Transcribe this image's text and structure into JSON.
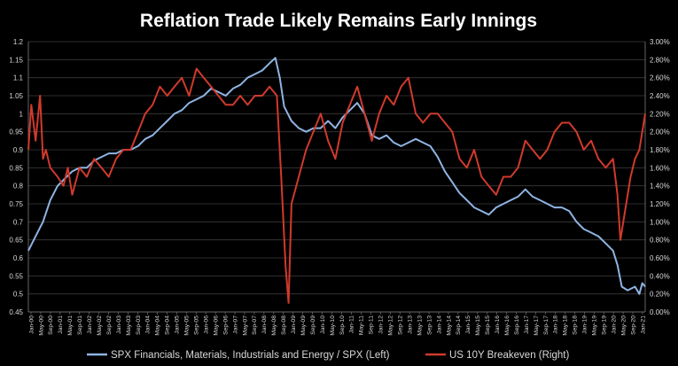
{
  "chart_data": {
    "type": "line",
    "title": "Reflation Trade Likely Remains Early Innings",
    "xlabel": "",
    "ylabel": "",
    "y_left": {
      "range": [
        0.45,
        1.2
      ],
      "ticks": [
        0.45,
        0.5,
        0.55,
        0.6,
        0.65,
        0.7,
        0.75,
        0.8,
        0.85,
        0.9,
        0.95,
        1,
        1.05,
        1.1,
        1.15,
        1.2
      ],
      "tick_labels": [
        "0.45",
        "0.5",
        "0.55",
        "0.6",
        "0.65",
        "0.7",
        "0.75",
        "0.8",
        "0.85",
        "0.9",
        "0.95",
        "1",
        "1.05",
        "1.1",
        "1.15",
        "1.2"
      ]
    },
    "y_right": {
      "range": [
        0.0,
        3.0
      ],
      "ticks": [
        0,
        0.2,
        0.4,
        0.6,
        0.8,
        1.0,
        1.2,
        1.4,
        1.6,
        1.8,
        2.0,
        2.2,
        2.4,
        2.6,
        2.8,
        3.0
      ],
      "tick_labels": [
        "0.00%",
        "0.20%",
        "0.40%",
        "0.60%",
        "0.80%",
        "1.00%",
        "1.20%",
        "1.40%",
        "1.60%",
        "1.80%",
        "2.00%",
        "2.20%",
        "2.40%",
        "2.60%",
        "2.80%",
        "3.00%"
      ]
    },
    "x_range": [
      2000.0,
      2021.1
    ],
    "x_tick_labels": [
      "Jan-00",
      "May-00",
      "Sep-00",
      "Jan-01",
      "May-01",
      "Sep-01",
      "Jan-02",
      "May-02",
      "Sep-02",
      "Jan-03",
      "May-03",
      "Sep-03",
      "Jan-04",
      "May-04",
      "Sep-04",
      "Jan-05",
      "May-05",
      "Sep-05",
      "Jan-06",
      "May-06",
      "Sep-06",
      "Jan-07",
      "May-07",
      "Sep-07",
      "Jan-08",
      "May-08",
      "Sep-08",
      "Jan-09",
      "May-09",
      "Sep-09",
      "Jan-10",
      "May-10",
      "Sep-10",
      "Jan-11",
      "May-11",
      "Sep-11",
      "Jan-12",
      "May-12",
      "Sep-12",
      "Jan-13",
      "May-13",
      "Sep-13",
      "Jan-14",
      "May-14",
      "Sep-14",
      "Jan-15",
      "May-15",
      "Sep-15",
      "Jan-16",
      "May-16",
      "Sep-16",
      "Jan-17",
      "May-17",
      "Sep-17",
      "Jan-18",
      "May-18",
      "Sep-18",
      "Jan-19",
      "May-19",
      "Sep-19",
      "Jan-20",
      "May-20",
      "Sep-20",
      "Jan-21"
    ],
    "grid": true,
    "legend_position": "bottom",
    "series": [
      {
        "name": "SPX Financials, Materials, Industrials and Energy / SPX (Left)",
        "axis": "left",
        "color": "#8fb4e3",
        "x": [
          2000.0,
          2000.25,
          2000.5,
          2000.75,
          2001.0,
          2001.25,
          2001.5,
          2001.75,
          2002.0,
          2002.25,
          2002.5,
          2002.75,
          2003.0,
          2003.25,
          2003.5,
          2003.75,
          2004.0,
          2004.25,
          2004.5,
          2004.75,
          2005.0,
          2005.25,
          2005.5,
          2005.75,
          2006.0,
          2006.25,
          2006.5,
          2006.75,
          2007.0,
          2007.25,
          2007.5,
          2007.75,
          2008.0,
          2008.25,
          2008.45,
          2008.6,
          2008.75,
          2009.0,
          2009.25,
          2009.5,
          2009.75,
          2010.0,
          2010.25,
          2010.5,
          2010.75,
          2011.0,
          2011.25,
          2011.5,
          2011.75,
          2012.0,
          2012.25,
          2012.5,
          2012.75,
          2013.0,
          2013.25,
          2013.5,
          2013.75,
          2014.0,
          2014.25,
          2014.5,
          2014.75,
          2015.0,
          2015.25,
          2015.5,
          2015.75,
          2016.0,
          2016.25,
          2016.5,
          2016.75,
          2017.0,
          2017.25,
          2017.5,
          2017.75,
          2018.0,
          2018.25,
          2018.5,
          2018.75,
          2019.0,
          2019.25,
          2019.5,
          2019.75,
          2020.0,
          2020.15,
          2020.3,
          2020.5,
          2020.75,
          2020.9,
          2021.0,
          2021.1
        ],
        "y": [
          0.62,
          0.66,
          0.7,
          0.76,
          0.8,
          0.82,
          0.84,
          0.85,
          0.85,
          0.87,
          0.88,
          0.89,
          0.89,
          0.9,
          0.9,
          0.91,
          0.93,
          0.94,
          0.96,
          0.98,
          1.0,
          1.01,
          1.03,
          1.04,
          1.05,
          1.07,
          1.06,
          1.05,
          1.07,
          1.08,
          1.1,
          1.11,
          1.12,
          1.14,
          1.155,
          1.1,
          1.02,
          0.98,
          0.96,
          0.95,
          0.96,
          0.96,
          0.98,
          0.96,
          0.99,
          1.01,
          1.03,
          1.0,
          0.94,
          0.93,
          0.94,
          0.92,
          0.91,
          0.92,
          0.93,
          0.92,
          0.91,
          0.88,
          0.84,
          0.81,
          0.78,
          0.76,
          0.74,
          0.73,
          0.72,
          0.74,
          0.75,
          0.76,
          0.77,
          0.79,
          0.77,
          0.76,
          0.75,
          0.74,
          0.74,
          0.73,
          0.7,
          0.68,
          0.67,
          0.66,
          0.64,
          0.62,
          0.58,
          0.52,
          0.51,
          0.52,
          0.5,
          0.53,
          0.52
        ]
      },
      {
        "name": "US 10Y Breakeven (Right)",
        "axis": "right",
        "color": "#d03a2c",
        "x": [
          2000.0,
          2000.1,
          2000.25,
          2000.4,
          2000.5,
          2000.6,
          2000.75,
          2001.0,
          2001.2,
          2001.35,
          2001.5,
          2001.75,
          2002.0,
          2002.25,
          2002.5,
          2002.75,
          2003.0,
          2003.25,
          2003.5,
          2003.75,
          2004.0,
          2004.25,
          2004.5,
          2004.75,
          2005.0,
          2005.25,
          2005.5,
          2005.75,
          2006.0,
          2006.25,
          2006.5,
          2006.75,
          2007.0,
          2007.25,
          2007.5,
          2007.75,
          2008.0,
          2008.25,
          2008.5,
          2008.65,
          2008.8,
          2008.9,
          2009.0,
          2009.25,
          2009.5,
          2009.75,
          2010.0,
          2010.25,
          2010.5,
          2010.75,
          2011.0,
          2011.25,
          2011.5,
          2011.75,
          2012.0,
          2012.25,
          2012.5,
          2012.75,
          2013.0,
          2013.25,
          2013.5,
          2013.75,
          2014.0,
          2014.25,
          2014.5,
          2014.75,
          2015.0,
          2015.25,
          2015.5,
          2015.75,
          2016.0,
          2016.25,
          2016.5,
          2016.75,
          2017.0,
          2017.25,
          2017.5,
          2017.75,
          2018.0,
          2018.25,
          2018.5,
          2018.75,
          2019.0,
          2019.25,
          2019.5,
          2019.75,
          2020.0,
          2020.15,
          2020.25,
          2020.4,
          2020.6,
          2020.75,
          2020.9,
          2021.0,
          2021.1
        ],
        "y": [
          1.8,
          2.3,
          1.9,
          2.4,
          1.7,
          1.8,
          1.6,
          1.5,
          1.4,
          1.6,
          1.3,
          1.6,
          1.5,
          1.7,
          1.6,
          1.5,
          1.7,
          1.8,
          1.8,
          2.0,
          2.2,
          2.3,
          2.5,
          2.4,
          2.5,
          2.6,
          2.4,
          2.7,
          2.6,
          2.5,
          2.4,
          2.3,
          2.3,
          2.4,
          2.3,
          2.4,
          2.4,
          2.5,
          2.4,
          1.5,
          0.5,
          0.1,
          1.2,
          1.5,
          1.8,
          2.0,
          2.2,
          1.9,
          1.7,
          2.1,
          2.3,
          2.5,
          2.2,
          1.9,
          2.2,
          2.4,
          2.3,
          2.5,
          2.6,
          2.2,
          2.1,
          2.2,
          2.2,
          2.1,
          2.0,
          1.7,
          1.6,
          1.8,
          1.5,
          1.4,
          1.3,
          1.5,
          1.5,
          1.6,
          1.9,
          1.8,
          1.7,
          1.8,
          2.0,
          2.1,
          2.1,
          2.0,
          1.8,
          1.9,
          1.7,
          1.6,
          1.7,
          1.3,
          0.8,
          1.1,
          1.5,
          1.7,
          1.8,
          2.0,
          2.2
        ]
      }
    ]
  }
}
